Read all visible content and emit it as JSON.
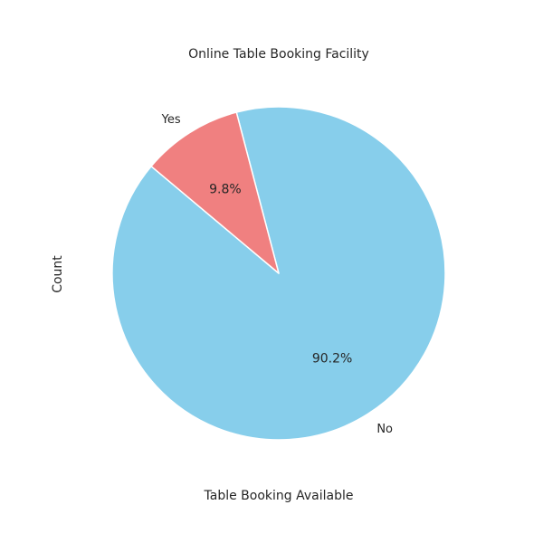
{
  "chart_data": {
    "type": "pie",
    "title": "Online Table Booking Facility",
    "xlabel": "Table Booking Available",
    "ylabel": "Count",
    "categories": [
      "No",
      "Yes"
    ],
    "values": [
      90.2,
      9.8
    ],
    "value_labels": [
      "90.2%",
      "9.8%"
    ],
    "colors": [
      "#87ceeb",
      "#f08080"
    ],
    "edge_color": "#ffffff",
    "start_angle_deg": 140,
    "legend": "none",
    "grid": false
  }
}
